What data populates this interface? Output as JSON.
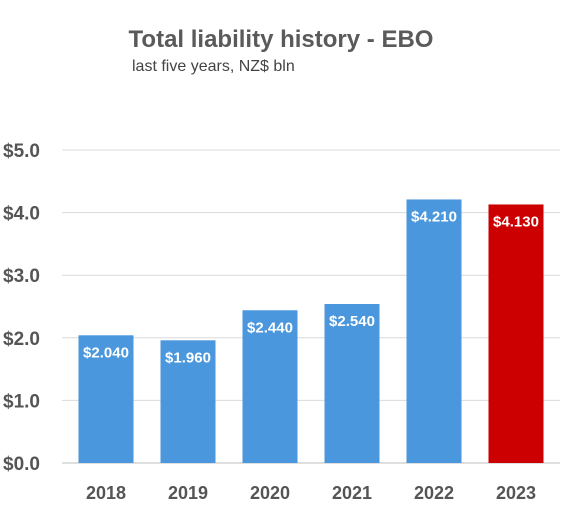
{
  "chart_data": {
    "type": "bar",
    "title": "Total liability history - EBO",
    "subtitle": "last five years, NZ$ bln",
    "categories": [
      "2018",
      "2019",
      "2020",
      "2021",
      "2022",
      "2023"
    ],
    "values": [
      2.04,
      1.96,
      2.44,
      2.54,
      4.21,
      4.13
    ],
    "data_labels": [
      "$2.040",
      "$1.960",
      "$2.440",
      "$2.540",
      "$4.210",
      "$4.130"
    ],
    "yticks": [
      "$0.0",
      "$1.0",
      "$2.0",
      "$3.0",
      "$4.0",
      "$5.0"
    ],
    "ylim": [
      0,
      5
    ],
    "grid": true,
    "colors": [
      "#4a97dd",
      "#4a97dd",
      "#4a97dd",
      "#4a97dd",
      "#4a97dd",
      "#cc0000"
    ]
  }
}
